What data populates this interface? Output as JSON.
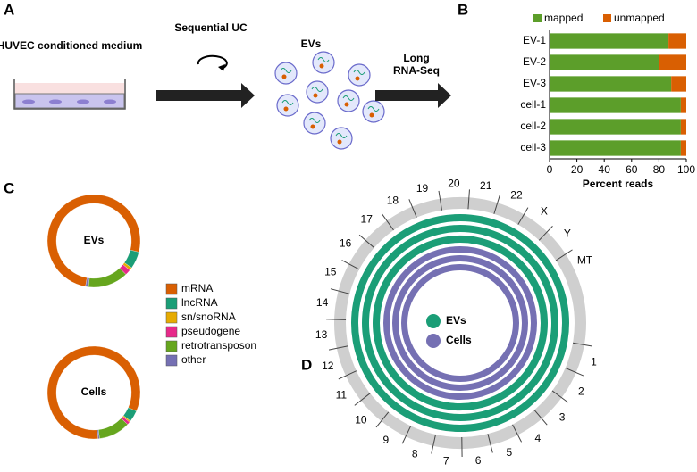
{
  "panel_labels": [
    "A",
    "B",
    "C",
    "D"
  ],
  "schematic": {
    "medium": "HUVEC conditioned medium",
    "step1": "Sequential UC",
    "product": "EVs",
    "step2": [
      "Long",
      "RNA-Seq"
    ]
  },
  "chart_data": [
    {
      "type": "bar",
      "orientation": "horizontal",
      "stacked": true,
      "categories": [
        "EV-1",
        "EV-2",
        "EV-3",
        "cell-1",
        "cell-2",
        "cell-3"
      ],
      "series": [
        {
          "name": "mapped",
          "color": "#5c9e2a",
          "values": [
            87,
            80,
            89,
            96,
            96,
            96
          ]
        },
        {
          "name": "unmapped",
          "color": "#d95f02",
          "values": [
            13,
            20,
            11,
            4,
            4,
            4
          ]
        }
      ],
      "xlabel": "Percent reads",
      "xlim": [
        0,
        100
      ],
      "xticks": [
        0,
        20,
        40,
        60,
        80,
        100
      ],
      "legend": "top"
    },
    {
      "type": "pie",
      "donut": true,
      "labels": [
        "mRNA",
        "lncRNA",
        "sn/snoRNA",
        "pseudogene",
        "retrotransposon",
        "other"
      ],
      "colors": [
        "#d95f02",
        "#1b9e77",
        "#e6ab02",
        "#e7298a",
        "#66a61e",
        "#7570b3"
      ],
      "series": [
        {
          "name": "EVs",
          "values": [
            76,
            6,
            1,
            2,
            14,
            1
          ]
        },
        {
          "name": "Cells",
          "values": [
            83,
            4,
            0.5,
            1,
            11,
            0.5
          ]
        }
      ]
    }
  ],
  "circos": {
    "chromosomes": [
      "1",
      "2",
      "3",
      "4",
      "5",
      "6",
      "7",
      "8",
      "9",
      "10",
      "11",
      "12",
      "13",
      "14",
      "15",
      "16",
      "17",
      "18",
      "19",
      "20",
      "21",
      "22",
      "X",
      "Y",
      "MT"
    ],
    "legend": [
      {
        "name": "EVs",
        "color": "#1b9e77"
      },
      {
        "name": "Cells",
        "color": "#7570b3"
      }
    ]
  }
}
